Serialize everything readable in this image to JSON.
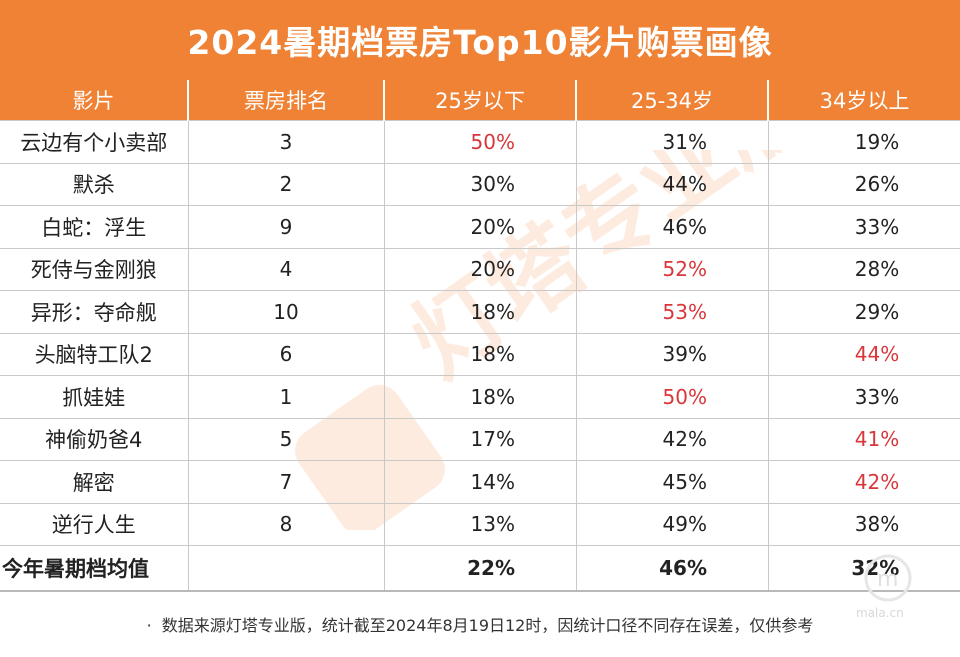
{
  "title": "2024暑期档票房Top10影片购票画像",
  "headers": [
    "影片",
    "票房排名",
    "25岁以下",
    "25-34岁",
    "34岁以上"
  ],
  "rows": [
    {
      "film": "云边有个小卖部",
      "rank": "3",
      "under25": "50%",
      "age25_34": "31%",
      "over34": "19%",
      "highlight": "under25"
    },
    {
      "film": "默杀",
      "rank": "2",
      "under25": "30%",
      "age25_34": "44%",
      "over34": "26%",
      "highlight": ""
    },
    {
      "film": "白蛇：浮生",
      "rank": "9",
      "under25": "20%",
      "age25_34": "46%",
      "over34": "33%",
      "highlight": ""
    },
    {
      "film": "死侍与金刚狼",
      "rank": "4",
      "under25": "20%",
      "age25_34": "52%",
      "over34": "28%",
      "highlight": "age25_34"
    },
    {
      "film": "异形：夺命舰",
      "rank": "10",
      "under25": "18%",
      "age25_34": "53%",
      "over34": "29%",
      "highlight": "age25_34"
    },
    {
      "film": "头脑特工队2",
      "rank": "6",
      "under25": "18%",
      "age25_34": "39%",
      "over34": "44%",
      "highlight": "over34"
    },
    {
      "film": "抓娃娃",
      "rank": "1",
      "under25": "18%",
      "age25_34": "50%",
      "over34": "33%",
      "highlight": "age25_34"
    },
    {
      "film": "神偷奶爸4",
      "rank": "5",
      "under25": "17%",
      "age25_34": "42%",
      "over34": "41%",
      "highlight": "over34"
    },
    {
      "film": "解密",
      "rank": "7",
      "under25": "14%",
      "age25_34": "45%",
      "over34": "42%",
      "highlight": "over34"
    },
    {
      "film": "逆行人生",
      "rank": "8",
      "under25": "13%",
      "age25_34": "49%",
      "over34": "38%",
      "highlight": ""
    }
  ],
  "average": {
    "label": "今年暑期档均值",
    "under25": "22%",
    "age25_34": "46%",
    "over34": "32%"
  },
  "footnote": "数据来源灯塔专业版，统计截至2024年8月19日12时，因统计口径不同存在误差，仅供参考",
  "watermark_text": "灯塔专业版",
  "corner_watermark": "mala.cn",
  "colors": {
    "accent": "#ef8235",
    "highlight": "#d9363a",
    "text": "#222222",
    "grid": "#c9c9c9"
  },
  "chart_data": {
    "type": "table",
    "title": "2024暑期档票房Top10影片购票画像",
    "columns": [
      "影片",
      "票房排名",
      "25岁以下",
      "25-34岁",
      "34岁以上"
    ],
    "rows": [
      [
        "云边有个小卖部",
        3,
        50,
        31,
        19
      ],
      [
        "默杀",
        2,
        30,
        44,
        26
      ],
      [
        "白蛇：浮生",
        9,
        20,
        46,
        33
      ],
      [
        "死侍与金刚狼",
        4,
        20,
        52,
        28
      ],
      [
        "异形：夺命舰",
        10,
        18,
        53,
        29
      ],
      [
        "头脑特工队2",
        6,
        18,
        39,
        44
      ],
      [
        "抓娃娃",
        1,
        18,
        50,
        33
      ],
      [
        "神偷奶爸4",
        5,
        17,
        42,
        41
      ],
      [
        "解密",
        7,
        14,
        45,
        42
      ],
      [
        "逆行人生",
        8,
        13,
        49,
        38
      ]
    ],
    "average": [
      "今年暑期档均值",
      null,
      22,
      46,
      32
    ]
  }
}
